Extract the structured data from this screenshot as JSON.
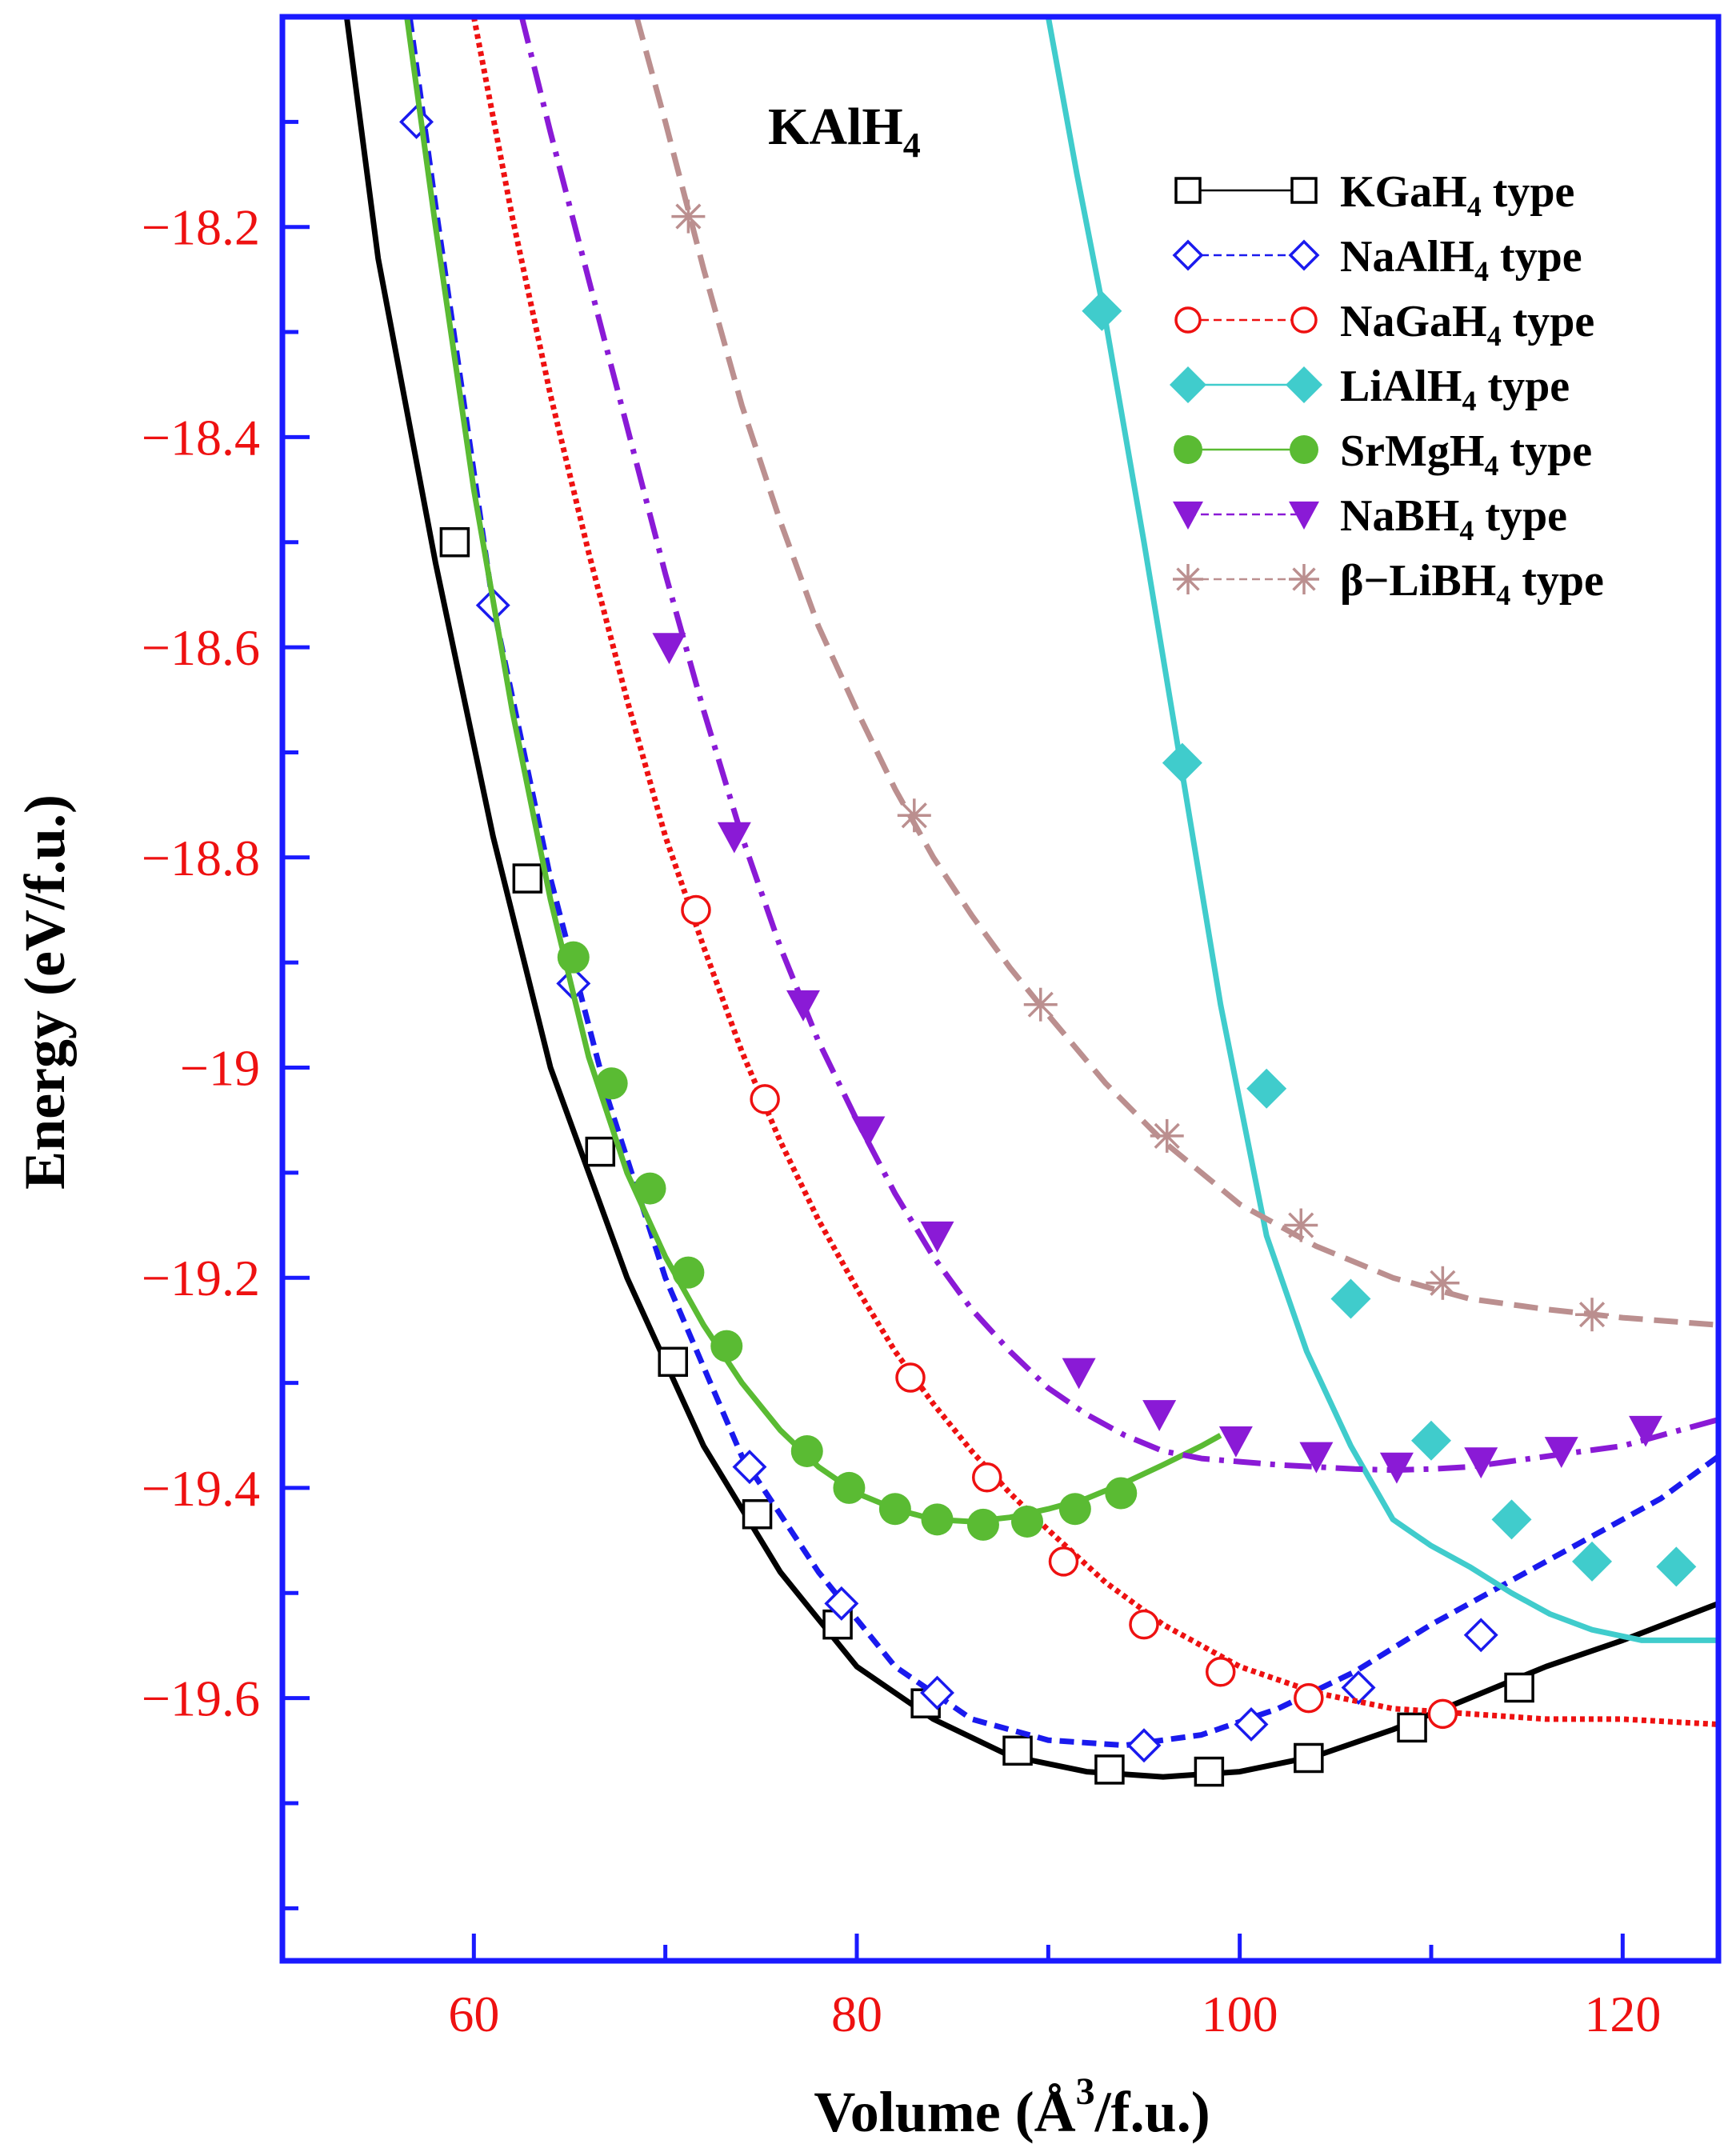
{
  "chart_data": {
    "type": "line",
    "title": "KAlH",
    "title_sub": "4",
    "xlabel": {
      "pre": "Volume (Å",
      "sup": "3",
      "post": "/f.u.)"
    },
    "ylabel": "Energy (eV/f.u.)",
    "xlim": [
      50,
      125
    ],
    "ylim": [
      -19.85,
      -18.0
    ],
    "x_ticks": [
      60,
      80,
      100,
      120
    ],
    "x_tick_labels": [
      "60",
      "80",
      "100",
      "120"
    ],
    "x_minor_ticks": [
      50,
      70,
      90,
      110
    ],
    "y_ticks": [
      -18.2,
      -18.4,
      -18.6,
      -18.8,
      -19.0,
      -19.2,
      -19.4,
      -19.6
    ],
    "y_tick_labels": [
      "−18.2",
      "−18.4",
      "−18.6",
      "−18.8",
      "−19",
      "−19.2",
      "−19.4",
      "−19.6"
    ],
    "y_minor_ticks": [
      -18.1,
      -18.3,
      -18.5,
      -18.7,
      -18.9,
      -19.1,
      -19.3,
      -19.5,
      -19.7,
      -19.8
    ],
    "legend_position": "top-right",
    "colors": {
      "axes": "#1a1aff",
      "tick_label": "#ee1111",
      "axis_label": "#000000"
    },
    "series": [
      {
        "name": "KGaH4 type",
        "legend_main": "KGaH",
        "legend_sub": "4",
        "legend_post": " type",
        "color": "#000000",
        "marker": "square-open",
        "dash": "",
        "x": [
          53,
          55,
          58,
          61,
          64,
          68,
          72,
          76,
          80,
          84,
          88,
          92,
          96,
          100,
          104,
          108,
          112,
          116,
          120,
          125
        ],
        "y": [
          -17.95,
          -18.23,
          -18.52,
          -18.78,
          -19.0,
          -19.2,
          -19.36,
          -19.48,
          -19.57,
          -19.62,
          -19.655,
          -19.67,
          -19.675,
          -19.67,
          -19.655,
          -19.63,
          -19.6,
          -19.57,
          -19.545,
          -19.51
        ],
        "markers_x": [
          59,
          62.8,
          66.6,
          70.4,
          74.8,
          79,
          83.6,
          88.4,
          93.2,
          98.4,
          103.6,
          109,
          114.6
        ],
        "markers_y": [
          -18.5,
          -18.82,
          -19.08,
          -19.28,
          -19.425,
          -19.53,
          -19.605,
          -19.65,
          -19.668,
          -19.67,
          -19.657,
          -19.628,
          -19.59
        ]
      },
      {
        "name": "NaAlH4 type",
        "legend_main": "NaAlH",
        "legend_sub": "4",
        "legend_post": " type",
        "color": "#1a1aee",
        "marker": "diamond-open",
        "dash": "18 10",
        "x": [
          56.5,
          58,
          61,
          64,
          67,
          70,
          74,
          78,
          82,
          86,
          90,
          94,
          98,
          102,
          106,
          110,
          114,
          118,
          122,
          125
        ],
        "y": [
          -17.98,
          -18.18,
          -18.56,
          -18.82,
          -19.03,
          -19.2,
          -19.37,
          -19.48,
          -19.57,
          -19.62,
          -19.64,
          -19.645,
          -19.635,
          -19.61,
          -19.575,
          -19.53,
          -19.49,
          -19.45,
          -19.41,
          -19.37
        ],
        "markers_x": [
          57,
          61,
          65.2,
          74.4,
          79.2,
          84.2,
          95,
          100.6,
          106.2,
          112.6
        ],
        "markers_y": [
          -18.1,
          -18.56,
          -18.92,
          -19.38,
          -19.51,
          -19.595,
          -19.645,
          -19.625,
          -19.59,
          -19.54
        ]
      },
      {
        "name": "NaGaH4 type",
        "legend_main": "NaGaH",
        "legend_sub": "4",
        "legend_post": " type",
        "color": "#ee1111",
        "marker": "circle-open",
        "dash": "6 5",
        "x": [
          60,
          62,
          64,
          66,
          68,
          70,
          72,
          74,
          76,
          78,
          80,
          82,
          84,
          86,
          88,
          90,
          93,
          96,
          100,
          104,
          108,
          112,
          116,
          120,
          125
        ],
        "y": [
          -18.0,
          -18.19,
          -18.36,
          -18.51,
          -18.65,
          -18.78,
          -18.885,
          -18.985,
          -19.07,
          -19.145,
          -19.21,
          -19.27,
          -19.32,
          -19.365,
          -19.405,
          -19.44,
          -19.49,
          -19.53,
          -19.57,
          -19.595,
          -19.61,
          -19.615,
          -19.62,
          -19.62,
          -19.625
        ],
        "markers_x": [
          71.6,
          75.2,
          82.8,
          86.8,
          90.8,
          95,
          99,
          103.6,
          110.6
        ],
        "markers_y": [
          -18.85,
          -19.03,
          -19.295,
          -19.39,
          -19.47,
          -19.53,
          -19.575,
          -19.6,
          -19.615
        ]
      },
      {
        "name": "LiAlH4 type",
        "legend_main": "LiAlH",
        "legend_sub": "4",
        "legend_post": " type",
        "color": "#40cccc",
        "marker": "diamond-filled",
        "dash": "",
        "x": [
          89.8,
          91.5,
          93,
          95,
          97,
          99,
          101.4,
          103.5,
          105.8,
          108,
          110,
          112,
          114.2,
          116.2,
          118.4,
          121,
          123,
          125
        ],
        "y": [
          -17.98,
          -18.15,
          -18.29,
          -18.5,
          -18.72,
          -18.94,
          -19.16,
          -19.27,
          -19.36,
          -19.43,
          -19.455,
          -19.475,
          -19.5,
          -19.52,
          -19.535,
          -19.545,
          -19.545,
          -19.545
        ],
        "markers_x": [
          92.8,
          97,
          101.4,
          105.8,
          110,
          114.2,
          118.4,
          122.8
        ],
        "markers_y": [
          -18.28,
          -18.71,
          -19.02,
          -19.22,
          -19.355,
          -19.43,
          -19.47,
          -19.475
        ]
      },
      {
        "name": "SrMgH4 type",
        "legend_main": "SrMgH",
        "legend_sub": "4",
        "legend_post": " type",
        "color": "#5abb33",
        "marker": "circle-filled",
        "dash": "",
        "x": [
          56.5,
          58,
          60,
          62,
          64,
          66,
          68,
          70,
          72,
          74,
          76,
          78,
          80,
          82,
          84,
          86,
          88,
          90,
          92,
          94,
          96,
          98,
          99
        ],
        "y": [
          -18.0,
          -18.2,
          -18.45,
          -18.66,
          -18.84,
          -18.99,
          -19.1,
          -19.18,
          -19.245,
          -19.3,
          -19.345,
          -19.38,
          -19.405,
          -19.42,
          -19.43,
          -19.432,
          -19.428,
          -19.42,
          -19.41,
          -19.395,
          -19.378,
          -19.36,
          -19.35
        ],
        "markers_x": [
          65.2,
          67.2,
          69.2,
          71.2,
          73.2,
          77.4,
          79.6,
          82,
          84.2,
          86.6,
          88.9,
          91.4,
          93.8
        ],
        "markers_y": [
          -18.895,
          -19.015,
          -19.115,
          -19.195,
          -19.265,
          -19.365,
          -19.4,
          -19.42,
          -19.43,
          -19.435,
          -19.432,
          -19.42,
          -19.405
        ]
      },
      {
        "name": "NaBH4 type",
        "legend_main": "NaBH",
        "legend_sub": "4",
        "legend_post": " type",
        "color": "#8a1ad6",
        "marker": "triangle-down-filled",
        "dash": "34 12 6 12",
        "x": [
          62.5,
          64,
          66,
          68,
          70,
          72,
          74,
          76,
          78,
          80,
          82,
          84,
          86,
          88,
          90,
          92,
          94,
          96,
          98,
          100,
          102,
          104,
          106,
          108,
          110,
          112,
          114,
          116,
          118,
          120,
          122,
          125
        ],
        "y": [
          -18.0,
          -18.11,
          -18.25,
          -18.39,
          -18.53,
          -18.66,
          -18.78,
          -18.885,
          -18.975,
          -19.05,
          -19.12,
          -19.18,
          -19.23,
          -19.27,
          -19.305,
          -19.33,
          -19.35,
          -19.365,
          -19.372,
          -19.375,
          -19.378,
          -19.38,
          -19.382,
          -19.383,
          -19.382,
          -19.38,
          -19.375,
          -19.37,
          -19.365,
          -19.36,
          -19.35,
          -19.335
        ],
        "markers_x": [
          70.2,
          73.6,
          77.2,
          80.6,
          84.2,
          91.6,
          95.8,
          99.8,
          104,
          108.2,
          112.6,
          116.8,
          121.2
        ],
        "markers_y": [
          -18.6,
          -18.78,
          -18.94,
          -19.06,
          -19.16,
          -19.29,
          -19.33,
          -19.355,
          -19.37,
          -19.38,
          -19.375,
          -19.365,
          -19.345
        ]
      },
      {
        "name": "β−LiBH4 type",
        "legend_main": "β−LiBH",
        "legend_sub": "4",
        "legend_post": " type",
        "color": "#bb8f8f",
        "marker": "star",
        "dash": "30 14",
        "x": [
          68.5,
          70,
          72,
          74,
          76,
          78,
          80,
          82,
          84,
          86,
          88,
          90,
          93,
          96,
          100,
          104,
          108,
          112,
          116,
          120,
          125
        ],
        "y": [
          -18.0,
          -18.1,
          -18.24,
          -18.37,
          -18.48,
          -18.58,
          -18.66,
          -18.735,
          -18.8,
          -18.855,
          -18.905,
          -18.95,
          -19.015,
          -19.07,
          -19.13,
          -19.17,
          -19.2,
          -19.22,
          -19.23,
          -19.238,
          -19.245
        ],
        "markers_x": [
          71.2,
          83,
          89.6,
          96.2,
          103.2,
          110.6,
          118.4
        ],
        "markers_y": [
          -18.19,
          -18.76,
          -18.94,
          -19.065,
          -19.15,
          -19.205,
          -19.235
        ]
      }
    ]
  }
}
